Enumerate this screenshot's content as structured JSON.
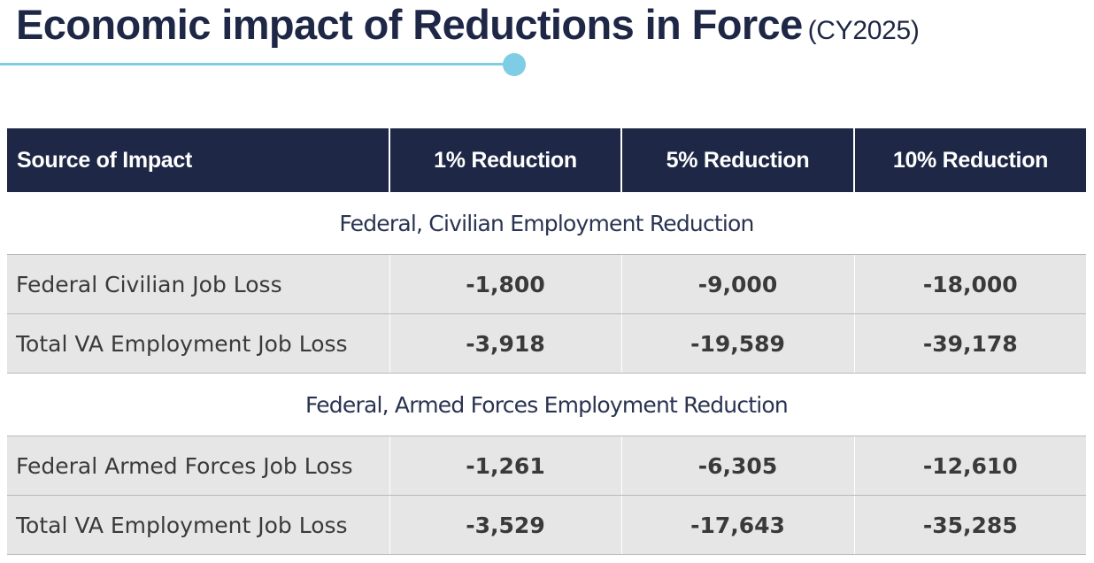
{
  "title": {
    "main": "Economic impact of Reductions in Force",
    "sub": "(CY2025)"
  },
  "colors": {
    "header_bg": "#1e2846",
    "accent": "#7fcde4",
    "row_bg": "#e6e6e6"
  },
  "table": {
    "headers": [
      "Source of Impact",
      "1% Reduction",
      "5% Reduction",
      "10% Reduction"
    ],
    "sections": [
      {
        "label": "Federal, Civilian Employment Reduction",
        "rows": [
          {
            "label": "Federal Civilian Job Loss",
            "values": [
              "-1,800",
              "-9,000",
              "-18,000"
            ]
          },
          {
            "label": "Total VA Employment Job Loss",
            "values": [
              "-3,918",
              "-19,589",
              "-39,178"
            ]
          }
        ]
      },
      {
        "label": "Federal, Armed Forces Employment Reduction",
        "rows": [
          {
            "label": "Federal Armed Forces Job Loss",
            "values": [
              "-1,261",
              "-6,305",
              "-12,610"
            ]
          },
          {
            "label": "Total VA Employment Job Loss",
            "values": [
              "-3,529",
              "-17,643",
              "-35,285"
            ]
          }
        ]
      }
    ]
  }
}
